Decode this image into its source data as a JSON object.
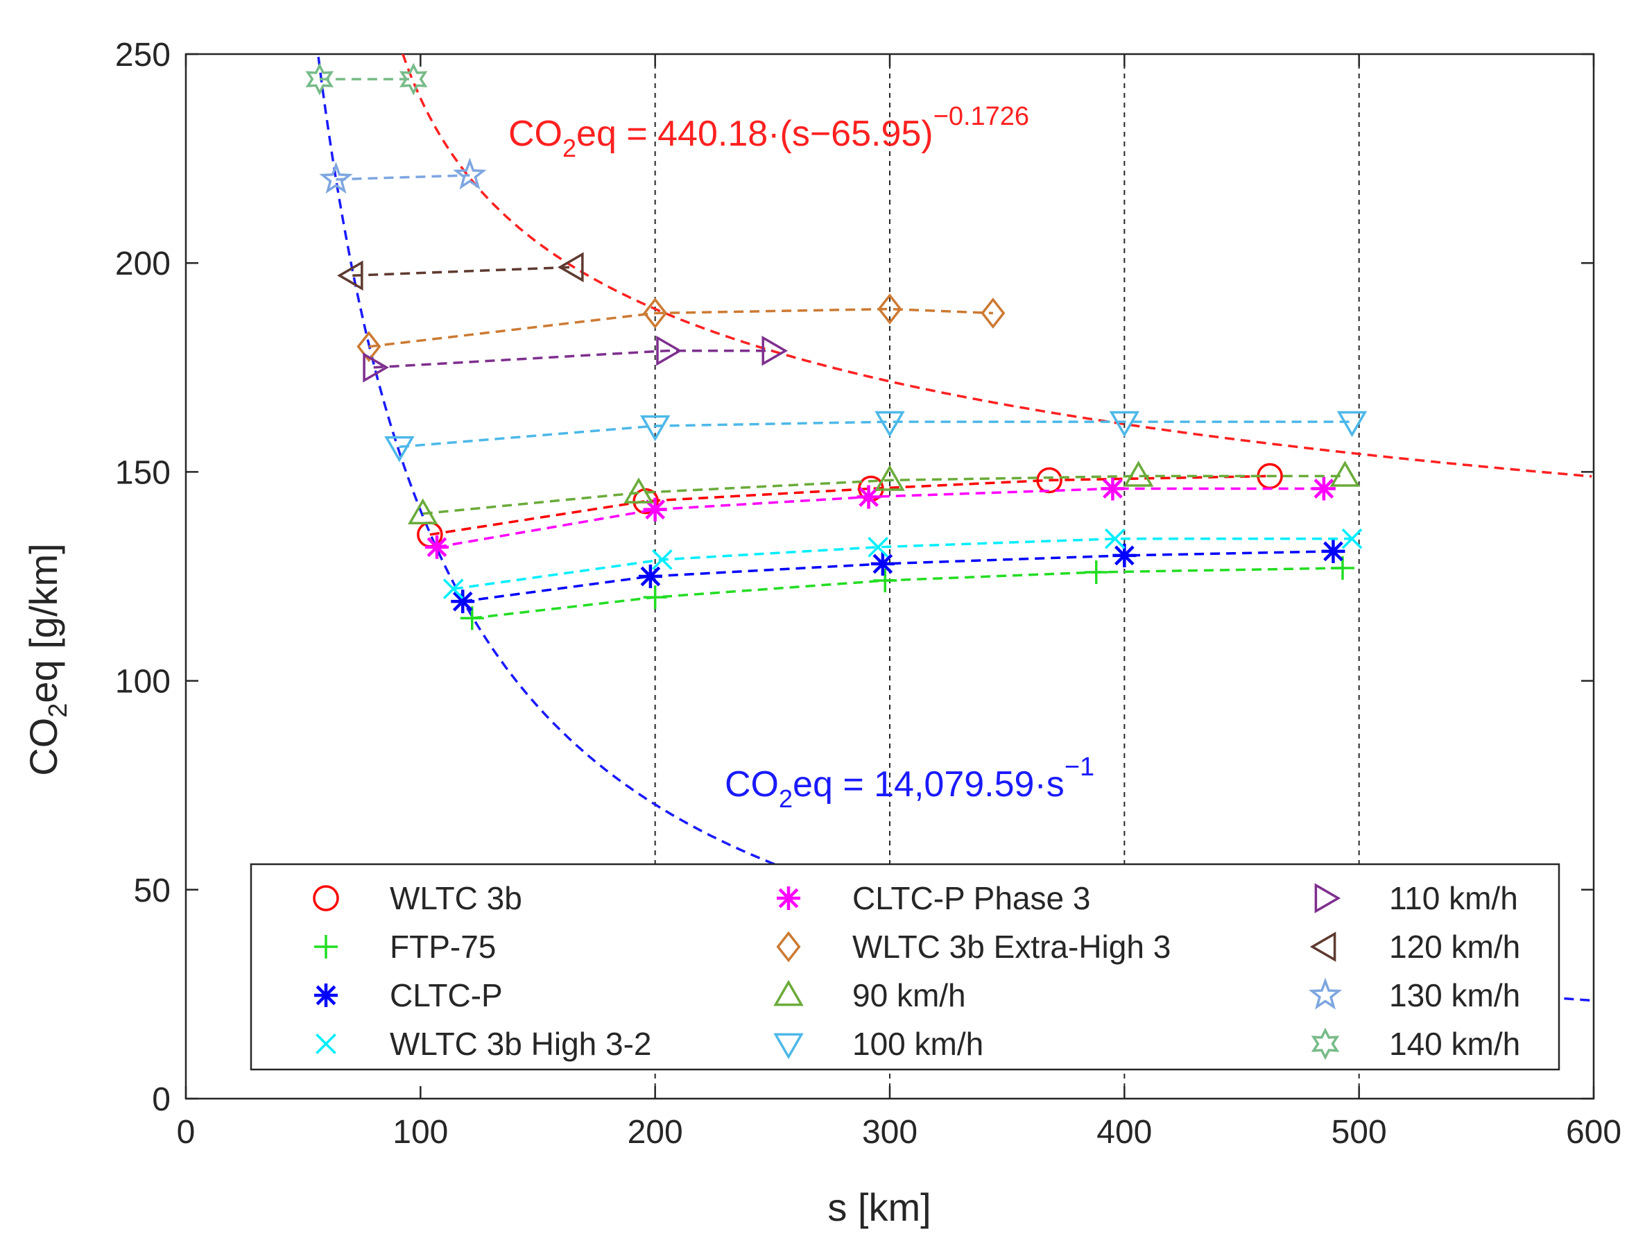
{
  "chart_data": {
    "type": "line",
    "title": "",
    "xlabel": "s [km]",
    "ylabel": {
      "prefix": "CO",
      "sub": "2",
      "suffix": "eq [g/km]"
    },
    "xlim": [
      0,
      600
    ],
    "ylim": [
      0,
      250
    ],
    "xticks": [
      "0",
      "100",
      "200",
      "300",
      "400",
      "500",
      "600"
    ],
    "yticks": [
      "0",
      "50",
      "100",
      "150",
      "200",
      "250"
    ],
    "grid": "vertical dashed lines at x = 200, 300, 400, 500",
    "vlines": [
      200,
      300,
      400,
      500
    ],
    "fits": [
      {
        "name": "upper-fit",
        "color": "#ff2020",
        "formula": {
          "a": 440.18,
          "b": 65.95,
          "c": -0.1726
        },
        "label": {
          "prefix": "CO",
          "sub": "2",
          "main": "eq = 440.18·(s−65.95)",
          "sup": "−0.1726"
        }
      },
      {
        "name": "lower-fit",
        "color": "#1a1aff",
        "formula": {
          "a": 14079.59,
          "c": -1
        },
        "label": {
          "prefix": "CO",
          "sub": "2",
          "main": "eq = 14,079.59·s",
          "sup": "−1"
        }
      }
    ],
    "series": [
      {
        "name": "WLTC 3b",
        "color": "#ff0000",
        "marker": "circle",
        "x": [
          104,
          196,
          292,
          368,
          462
        ],
        "y": [
          135,
          143,
          146,
          148,
          149
        ]
      },
      {
        "name": "FTP-75",
        "color": "#22dd22",
        "marker": "plus",
        "x": [
          122,
          200,
          298,
          388,
          493
        ],
        "y": [
          115,
          120,
          124,
          126,
          127
        ]
      },
      {
        "name": "CLTC-P",
        "color": "#0000ff",
        "marker": "asterisk",
        "x": [
          118,
          198,
          297,
          400,
          489
        ],
        "y": [
          119,
          125,
          128,
          130,
          131
        ]
      },
      {
        "name": "WLTC 3b High 3-2",
        "color": "#00eeff",
        "marker": "x",
        "x": [
          114,
          203,
          295,
          396,
          497
        ],
        "y": [
          122,
          129,
          132,
          134,
          134
        ]
      },
      {
        "name": "CLTC-P Phase 3",
        "color": "#ff00ff",
        "marker": "asterisk",
        "x": [
          107,
          200,
          291,
          395,
          485
        ],
        "y": [
          132,
          141,
          144,
          146,
          146
        ]
      },
      {
        "name": "WLTC 3b Extra-High 3",
        "color": "#cc7a33",
        "marker": "diamond",
        "x": [
          78,
          200,
          300,
          344
        ],
        "y": [
          180,
          188,
          189,
          188
        ]
      },
      {
        "name": "90 km/h",
        "color": "#6aab3a",
        "marker": "triangle-up",
        "x": [
          101,
          193,
          300,
          406,
          494
        ],
        "y": [
          140,
          145,
          148,
          149,
          149
        ]
      },
      {
        "name": "100 km/h",
        "color": "#4db8e8",
        "marker": "triangle-down",
        "x": [
          91,
          200,
          300,
          400,
          497
        ],
        "y": [
          156,
          161,
          162,
          162,
          162
        ]
      },
      {
        "name": "110 km/h",
        "color": "#7e2f8e",
        "marker": "triangle-right",
        "x": [
          80,
          205,
          250
        ],
        "y": [
          175,
          179,
          179
        ]
      },
      {
        "name": "120 km/h",
        "color": "#5e3a30",
        "marker": "triangle-left",
        "x": [
          71,
          165
        ],
        "y": [
          197,
          199
        ]
      },
      {
        "name": "130 km/h",
        "color": "#7ea6e0",
        "marker": "pentagram",
        "x": [
          64,
          121
        ],
        "y": [
          220,
          221
        ]
      },
      {
        "name": "140 km/h",
        "color": "#77bb88",
        "marker": "hexagram",
        "x": [
          57,
          97
        ],
        "y": [
          244,
          244
        ]
      }
    ],
    "legend": {
      "placement": "bottom-center",
      "columns": 3,
      "order": [
        [
          "WLTC 3b",
          "FTP-75",
          "CLTC-P",
          "WLTC 3b High 3-2"
        ],
        [
          "CLTC-P Phase 3",
          "WLTC 3b Extra-High 3",
          "90 km/h",
          "100 km/h"
        ],
        [
          "110 km/h",
          "120 km/h",
          "130 km/h",
          "140 km/h"
        ]
      ]
    }
  }
}
